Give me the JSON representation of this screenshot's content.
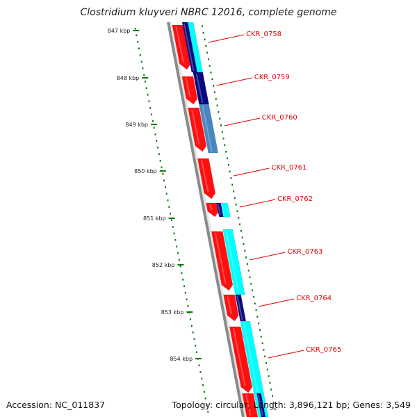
{
  "header": {
    "title": "Clostridium kluyveri NBRC 12016, complete genome"
  },
  "footer": {
    "accession": "Accession: NC_011837",
    "topology": "Topology: circular; Length: 3,896,121 bp; Genes: 3,549"
  },
  "colors": {
    "forward_gene": "#ff1010",
    "cds_cyan": "#00ffff",
    "cds_navy": "#0a0a80",
    "cds_steel": "#4a86c0",
    "backbone": "#8a8a8a",
    "tick": "#0a7a0a",
    "label": "#e00000"
  },
  "scale": {
    "ticks": [
      "847 kbp",
      "848 kbp",
      "849 kbp",
      "850 kbp",
      "851 kbp",
      "852 kbp",
      "853 kbp",
      "854 kbp"
    ]
  },
  "genes": [
    "CKR_0758",
    "CKR_0759",
    "CKR_0760",
    "CKR_0761",
    "CKR_0762",
    "CKR_0763",
    "CKR_0764",
    "CKR_0765"
  ]
}
